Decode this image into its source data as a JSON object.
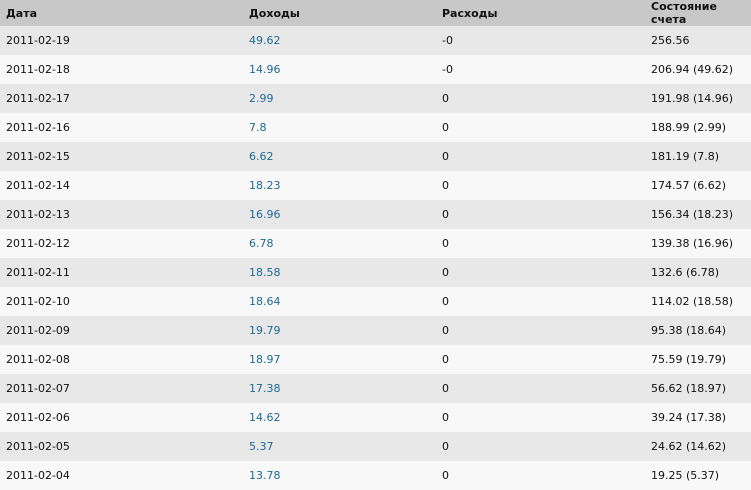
{
  "headers": [
    "Дата",
    "Доходы",
    "Расходы",
    "Состояние счета"
  ],
  "colors": {
    "header_bg": "#c8c8c8",
    "row_odd": "#e8e8e8",
    "row_even": "#f8f8f8",
    "income_link": "#1f6a96"
  },
  "rows": [
    {
      "date": "2011-02-19",
      "income": "49.62",
      "expense": "-0",
      "balance": "256.56"
    },
    {
      "date": "2011-02-18",
      "income": "14.96",
      "expense": "-0",
      "balance": "206.94 (49.62)"
    },
    {
      "date": "2011-02-17",
      "income": "2.99",
      "expense": "0",
      "balance": "191.98 (14.96)"
    },
    {
      "date": "2011-02-16",
      "income": "7.8",
      "expense": "0",
      "balance": "188.99 (2.99)"
    },
    {
      "date": "2011-02-15",
      "income": "6.62",
      "expense": "0",
      "balance": "181.19 (7.8)"
    },
    {
      "date": "2011-02-14",
      "income": "18.23",
      "expense": "0",
      "balance": "174.57 (6.62)"
    },
    {
      "date": "2011-02-13",
      "income": "16.96",
      "expense": "0",
      "balance": "156.34 (18.23)"
    },
    {
      "date": "2011-02-12",
      "income": "6.78",
      "expense": "0",
      "balance": "139.38 (16.96)"
    },
    {
      "date": "2011-02-11",
      "income": "18.58",
      "expense": "0",
      "balance": "132.6 (6.78)"
    },
    {
      "date": "2011-02-10",
      "income": "18.64",
      "expense": "0",
      "balance": "114.02 (18.58)"
    },
    {
      "date": "2011-02-09",
      "income": "19.79",
      "expense": "0",
      "balance": "95.38 (18.64)"
    },
    {
      "date": "2011-02-08",
      "income": "18.97",
      "expense": "0",
      "balance": "75.59 (19.79)"
    },
    {
      "date": "2011-02-07",
      "income": "17.38",
      "expense": "0",
      "balance": "56.62 (18.97)"
    },
    {
      "date": "2011-02-06",
      "income": "14.62",
      "expense": "0",
      "balance": "39.24 (17.38)"
    },
    {
      "date": "2011-02-05",
      "income": "5.37",
      "expense": "0",
      "balance": "24.62 (14.62)"
    },
    {
      "date": "2011-02-04",
      "income": "13.78",
      "expense": "0",
      "balance": "19.25 (5.37)"
    }
  ]
}
